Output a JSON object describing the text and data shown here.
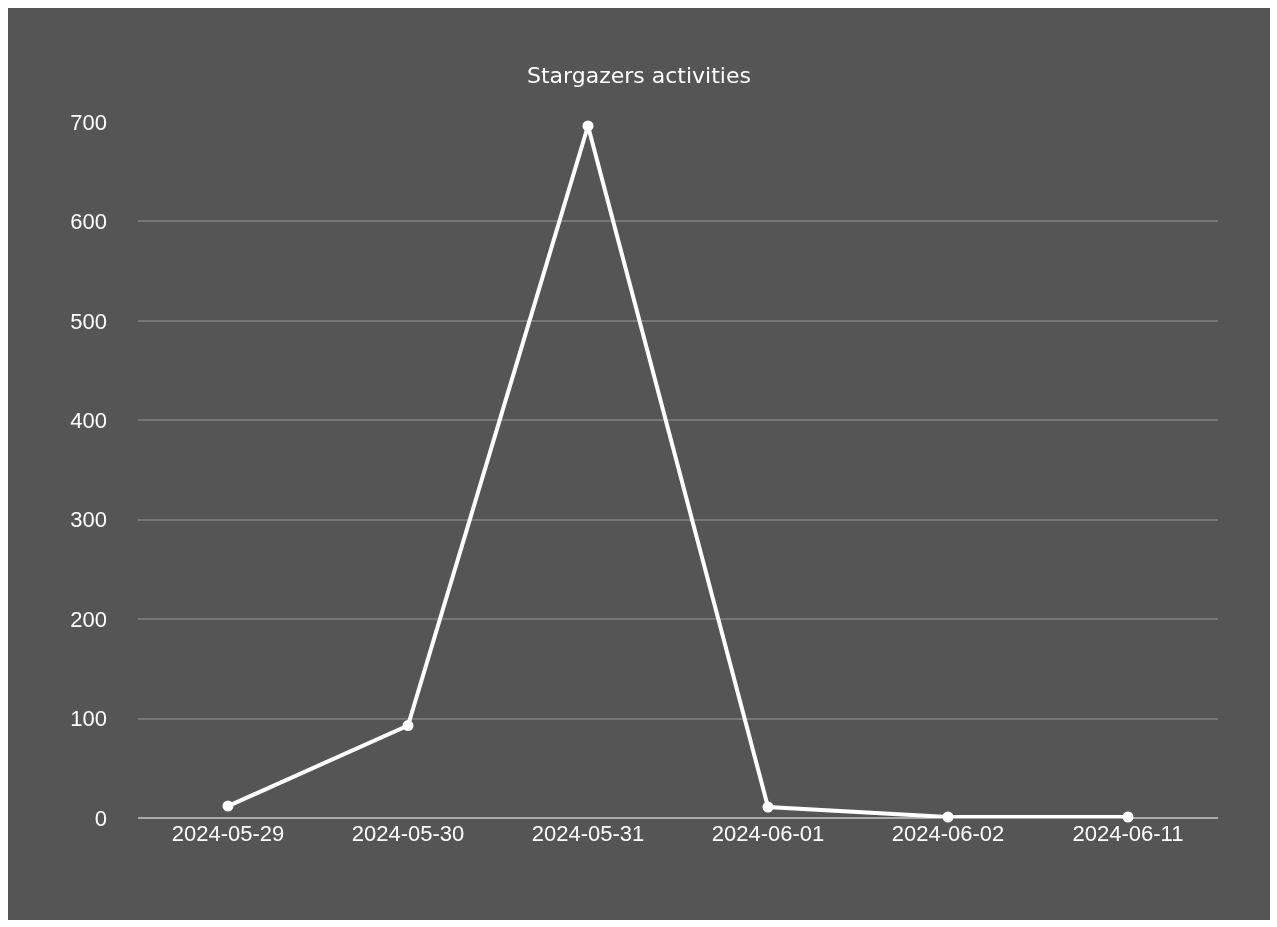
{
  "chart_data": {
    "type": "line",
    "title": "Stargazers activities",
    "categories": [
      "2024-05-29",
      "2024-05-30",
      "2024-05-31",
      "2024-06-01",
      "2024-06-02",
      "2024-06-11"
    ],
    "series": [
      {
        "color": "#ffffff",
        "values": [
          12,
          93,
          696,
          11,
          1,
          1
        ]
      }
    ],
    "ylim": [
      0,
      700
    ],
    "yticks": [
      0,
      100,
      200,
      300,
      400,
      500,
      600,
      700
    ],
    "grid": "y",
    "legend": false,
    "marker": "circle",
    "line_style": "solid"
  }
}
